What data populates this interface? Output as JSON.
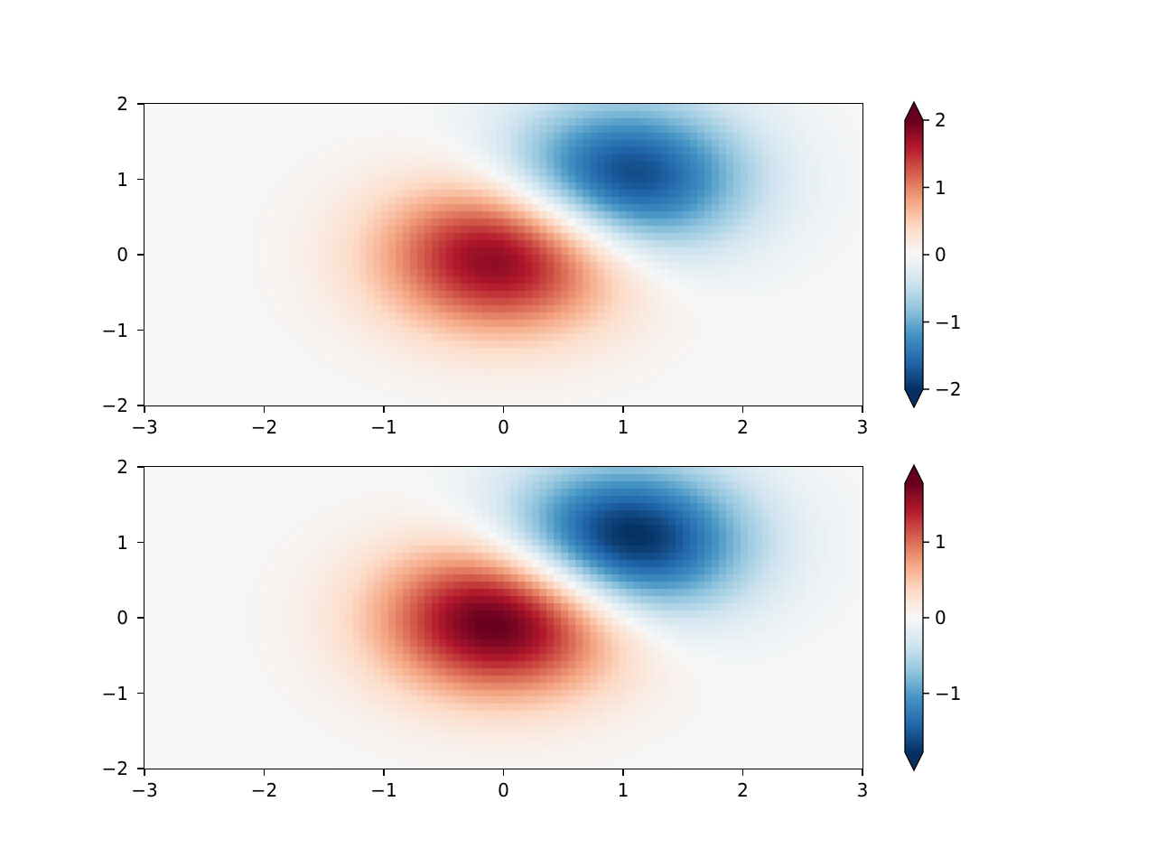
{
  "figure": {
    "background": "#ffffff",
    "text_color": "#000000",
    "spine_color": "#000000",
    "tick_font_size_px": 20
  },
  "colormap": {
    "name": "RdBu_r",
    "stops_min_to_max": [
      "#053061",
      "#2166ac",
      "#4393c3",
      "#92c5de",
      "#d1e5f0",
      "#f7f7f7",
      "#fddbc7",
      "#f4a582",
      "#d6604d",
      "#b2182b",
      "#67001f"
    ],
    "under_color": "#053061",
    "over_color": "#67001f"
  },
  "chart_data": [
    {
      "type": "heatmap",
      "subplot": "top",
      "title": "",
      "xlabel": "",
      "ylabel": "",
      "x_range": [
        -3,
        3
      ],
      "y_range": [
        -2,
        2
      ],
      "x_ticks": [
        -3,
        -2,
        -1,
        0,
        1,
        2,
        3
      ],
      "x_tick_labels": [
        "−3",
        "−2",
        "−1",
        "0",
        "1",
        "2",
        "3"
      ],
      "y_ticks": [
        2,
        1,
        0,
        -1,
        -2
      ],
      "y_tick_labels": [
        "2",
        "1",
        "0",
        "−1",
        "−2"
      ],
      "values_formula": "z(x,y) = 2·exp(−x²−y²) − 2·exp(−(x−1)²−(y−1)²)",
      "gaussian_components": [
        {
          "center_x": 0,
          "center_y": 0,
          "amplitude": 2
        },
        {
          "center_x": 1,
          "center_y": 1,
          "amplitude": -2
        }
      ],
      "z_min": -1.78,
      "z_max": 1.78,
      "clim": [
        -2,
        2
      ],
      "mesh": {
        "nx": 100,
        "ny": 42
      },
      "grid": false,
      "colorbar": {
        "extend": "both",
        "ticks": [
          2,
          1,
          0,
          -1,
          -2
        ],
        "tick_labels": [
          "2",
          "1",
          "0",
          "−1",
          "−2"
        ]
      }
    },
    {
      "type": "heatmap",
      "subplot": "bottom",
      "title": "",
      "xlabel": "",
      "ylabel": "",
      "x_range": [
        -3,
        3
      ],
      "y_range": [
        -2,
        2
      ],
      "x_ticks": [
        -3,
        -2,
        -1,
        0,
        1,
        2,
        3
      ],
      "x_tick_labels": [
        "−3",
        "−2",
        "−1",
        "0",
        "1",
        "2",
        "3"
      ],
      "y_ticks": [
        2,
        1,
        0,
        -1,
        -2
      ],
      "y_tick_labels": [
        "2",
        "1",
        "0",
        "−1",
        "−2"
      ],
      "values_formula": "z(x,y) = 2·exp(−x²−y²) − 2·exp(−(x−1)²−(y−1)²)",
      "gaussian_components": [
        {
          "center_x": 0,
          "center_y": 0,
          "amplitude": 2
        },
        {
          "center_x": 1,
          "center_y": 1,
          "amplitude": -2
        }
      ],
      "z_min": -1.78,
      "z_max": 1.78,
      "clim": [
        -1.78,
        1.78
      ],
      "mesh": {
        "nx": 100,
        "ny": 42
      },
      "grid": false,
      "colorbar": {
        "extend": "both",
        "ticks": [
          1,
          0,
          -1
        ],
        "tick_labels": [
          "1",
          "0",
          "−1"
        ]
      }
    }
  ]
}
